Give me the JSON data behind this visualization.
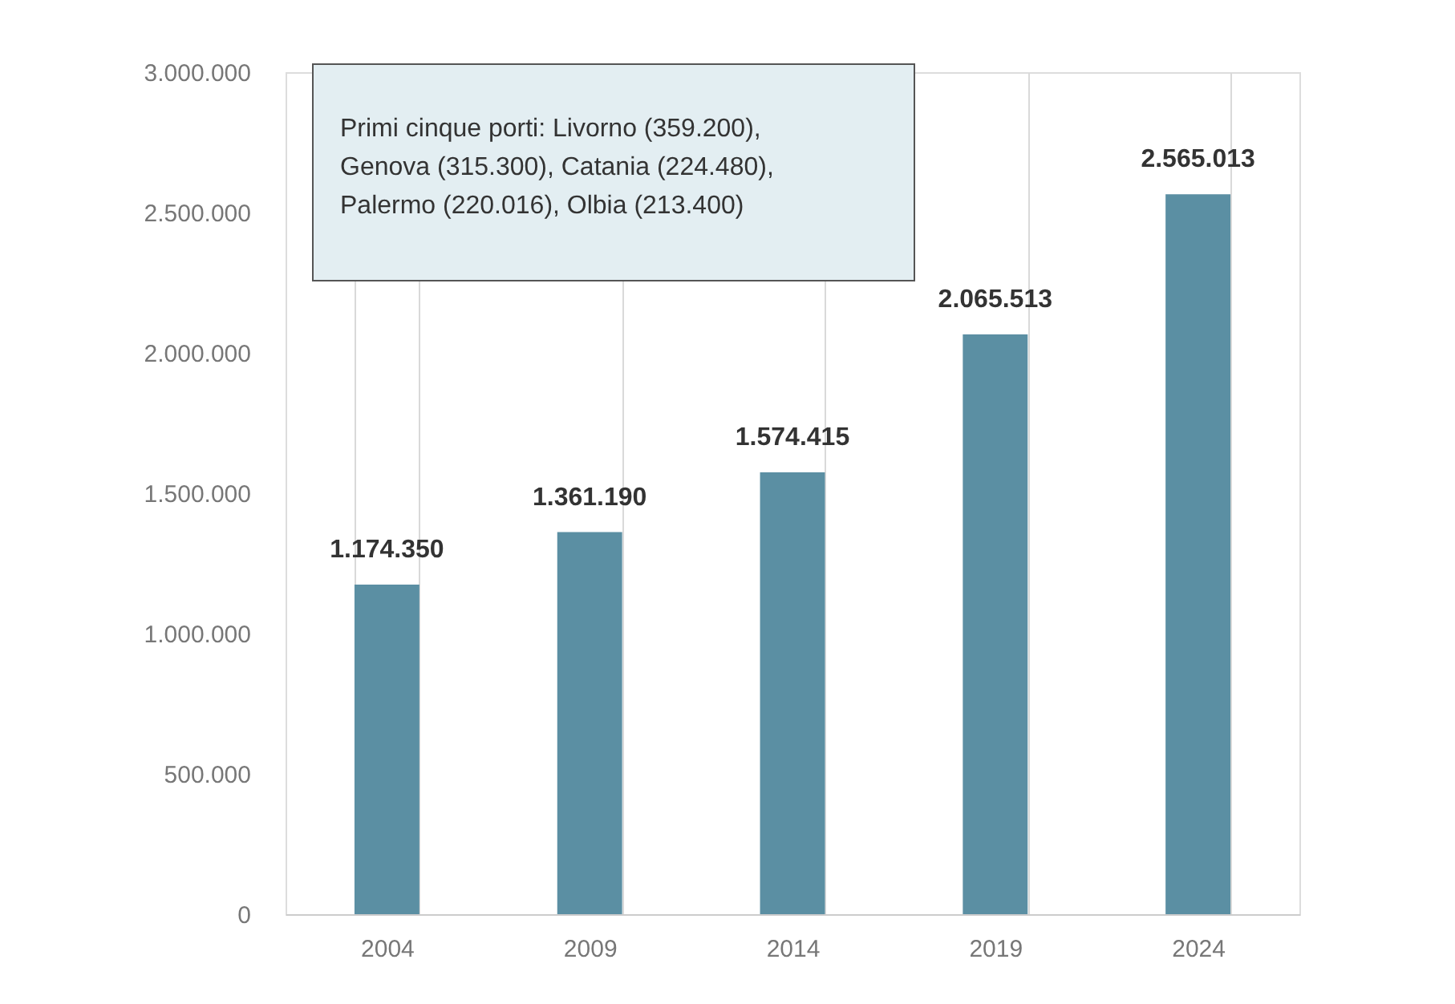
{
  "chart_data": {
    "type": "bar",
    "categories": [
      "2004",
      "2009",
      "2014",
      "2019",
      "2024"
    ],
    "values": [
      1174350,
      1361190,
      1574415,
      2065513,
      2565013
    ],
    "color": "#5b8fa3",
    "ylim": [
      0,
      3000000
    ],
    "yticks": [
      {
        "value": 0,
        "label": "0"
      },
      {
        "value": 500000,
        "label": "500.000"
      },
      {
        "value": 1000000,
        "label": "1.000.000"
      },
      {
        "value": 1500000,
        "label": "1.500.000"
      },
      {
        "value": 2000000,
        "label": "2.000.000"
      },
      {
        "value": 2500000,
        "label": "2.500.000"
      },
      {
        "value": 3000000,
        "label": "3.000.000"
      }
    ],
    "grid": "x",
    "value_labels": [
      "1.174.350",
      "1.361.190",
      "1.574.415",
      "2.065.513",
      "2.565.013"
    ],
    "annotations": [
      "Primi cinque porti: Livorno (359.200), Genova (315.300), Catania (224.480), Palermo (220.016), Olbia (213.400)"
    ]
  }
}
